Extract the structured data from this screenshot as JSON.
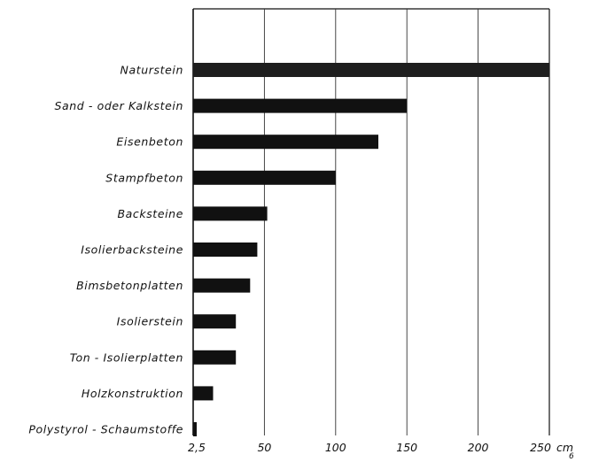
{
  "chart_data": {
    "type": "bar",
    "orientation": "horizontal",
    "categories": [
      "Naturstein",
      "Sand - oder Kalkstein",
      "Eisenbeton",
      "Stampfbeton",
      "Backsteine",
      "Isolierbacksteine",
      "Bimsbetonplatten",
      "Isolierstein",
      "Ton - Isolierplatten",
      "Holzkonstruktion",
      "Polystyrol - Schaumstoffe"
    ],
    "values": [
      250,
      150,
      130,
      100,
      52,
      45,
      40,
      30,
      30,
      14,
      2.5
    ],
    "title": "",
    "xlabel": "cm",
    "ylabel": "",
    "xlim": [
      0,
      250
    ],
    "xticks": [
      2.5,
      50,
      100,
      150,
      200,
      250
    ],
    "xtick_labels": [
      "2,5",
      "50",
      "100",
      "150",
      "200",
      "250"
    ],
    "grid": "vertical",
    "legend": "none",
    "bar_color": "#111111"
  },
  "figure_number": "6"
}
